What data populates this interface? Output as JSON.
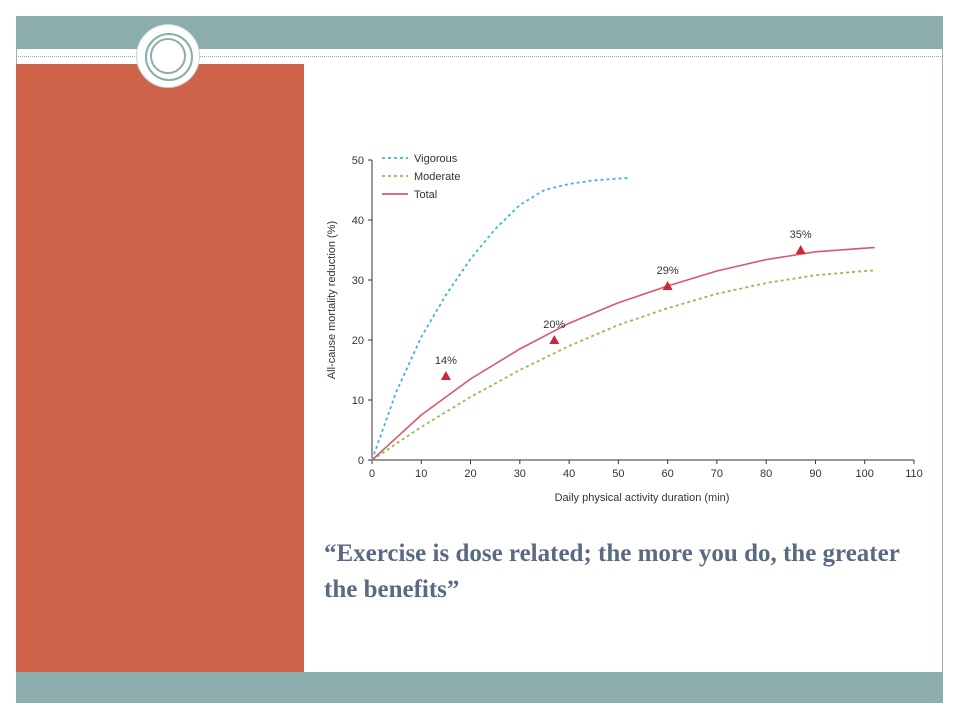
{
  "slide": {
    "caption": "“Exercise is dose related; the more you do, the greater the benefits”",
    "colors": {
      "accent_band": "#8badac",
      "side_panel": "#d0644a",
      "caption_text": "#5a6a82"
    }
  },
  "chart_data": {
    "type": "line",
    "xlabel": "Daily physical activity duration (min)",
    "ylabel": "All-cause mortality reduction (%)",
    "xlim": [
      0,
      110
    ],
    "ylim": [
      0,
      50
    ],
    "xticks": [
      0,
      10,
      20,
      30,
      40,
      50,
      60,
      70,
      80,
      90,
      100,
      110
    ],
    "yticks": [
      0,
      10,
      20,
      30,
      40,
      50
    ],
    "grid": false,
    "legend": "top-left",
    "series": [
      {
        "name": "Vigorous",
        "style": "dotted",
        "color": "#3fb6dd",
        "x": [
          0,
          5,
          10,
          15,
          20,
          25,
          30,
          35,
          40,
          45,
          50,
          52
        ],
        "y": [
          0,
          11.5,
          20.5,
          27.5,
          33.5,
          38.5,
          42.5,
          45.0,
          46.0,
          46.6,
          46.9,
          47.0
        ]
      },
      {
        "name": "Moderate",
        "style": "dotted",
        "color": "#8fbe4e",
        "x": [
          0,
          10,
          20,
          30,
          40,
          50,
          60,
          70,
          80,
          90,
          100,
          102
        ],
        "y": [
          0,
          5.5,
          10.5,
          15.0,
          19.0,
          22.5,
          25.3,
          27.7,
          29.5,
          30.8,
          31.5,
          31.6
        ]
      },
      {
        "name": "Total",
        "style": "solid",
        "color": "#d8596a",
        "x": [
          0,
          10,
          20,
          30,
          40,
          50,
          60,
          70,
          80,
          90,
          100,
          102
        ],
        "y": [
          0,
          7.5,
          13.5,
          18.5,
          22.8,
          26.2,
          29.0,
          31.5,
          33.4,
          34.7,
          35.3,
          35.4
        ]
      }
    ],
    "markers": [
      {
        "x": 15,
        "y": 14,
        "label": "14%"
      },
      {
        "x": 37,
        "y": 20,
        "label": "20%"
      },
      {
        "x": 60,
        "y": 29,
        "label": "29%"
      },
      {
        "x": 87,
        "y": 35,
        "label": "35%"
      }
    ],
    "marker_color": "#c8283c"
  }
}
